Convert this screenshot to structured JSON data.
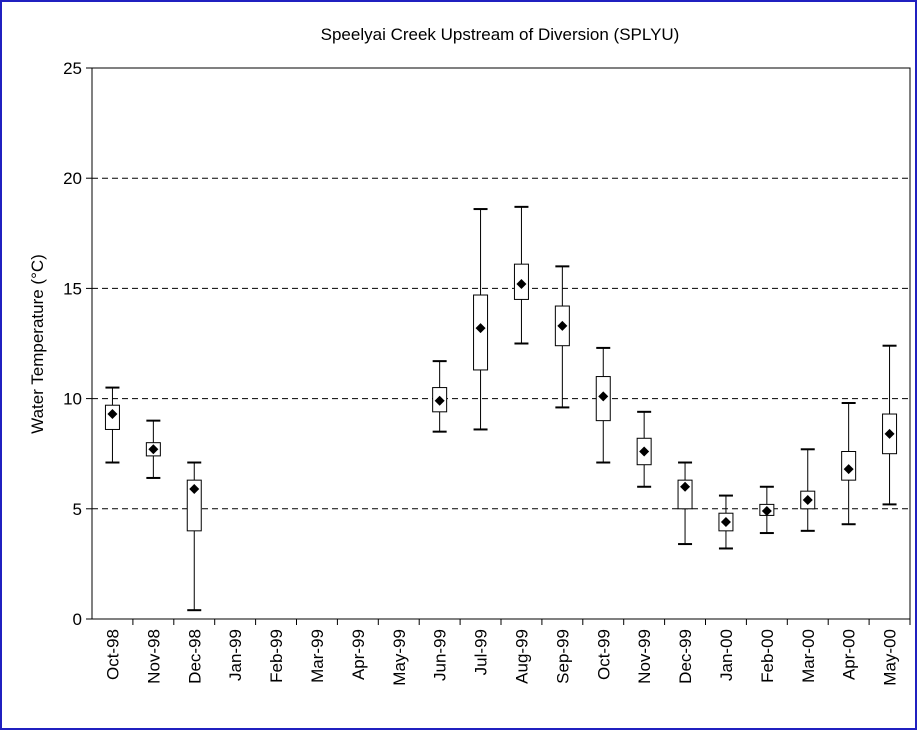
{
  "chart_data": {
    "type": "box",
    "title": "Speelyai Creek Upstream of Diversion (SPLYU)",
    "y_label": "Water Temperature (°C)",
    "categories": [
      "Oct-98",
      "Nov-98",
      "Dec-98",
      "Jan-99",
      "Feb-99",
      "Mar-99",
      "Apr-99",
      "May-99",
      "Jun-99",
      "Jul-99",
      "Aug-99",
      "Sep-99",
      "Oct-99",
      "Nov-99",
      "Dec-99",
      "Jan-00",
      "Feb-00",
      "Mar-00",
      "Apr-00",
      "May-00"
    ],
    "min": [
      7.1,
      6.4,
      0.4,
      null,
      null,
      null,
      null,
      null,
      8.5,
      8.6,
      12.5,
      9.6,
      7.1,
      6.0,
      3.4,
      3.2,
      3.9,
      4.0,
      4.3,
      5.2
    ],
    "q1": [
      8.6,
      7.4,
      4.0,
      null,
      null,
      null,
      null,
      null,
      9.4,
      11.3,
      14.5,
      12.4,
      9.0,
      7.0,
      5.0,
      4.0,
      4.7,
      5.0,
      6.3,
      7.5
    ],
    "q3": [
      9.7,
      8.0,
      6.3,
      null,
      null,
      null,
      null,
      null,
      10.5,
      14.7,
      16.1,
      14.2,
      11.0,
      8.2,
      6.3,
      4.8,
      5.2,
      5.8,
      7.6,
      9.3
    ],
    "max": [
      10.5,
      9.0,
      7.1,
      null,
      null,
      null,
      null,
      null,
      11.7,
      18.6,
      18.7,
      16.0,
      12.3,
      9.4,
      7.1,
      5.6,
      6.0,
      7.7,
      9.8,
      12.4
    ],
    "mean": [
      9.3,
      7.7,
      5.9,
      null,
      null,
      null,
      null,
      null,
      9.9,
      13.2,
      15.2,
      13.3,
      10.1,
      7.6,
      6.0,
      4.4,
      4.9,
      5.4,
      6.8,
      8.4
    ],
    "color": "#000000",
    "ylim": [
      0,
      25
    ],
    "yticks": [
      0,
      5,
      10,
      15,
      20,
      25
    ],
    "grid": true
  }
}
